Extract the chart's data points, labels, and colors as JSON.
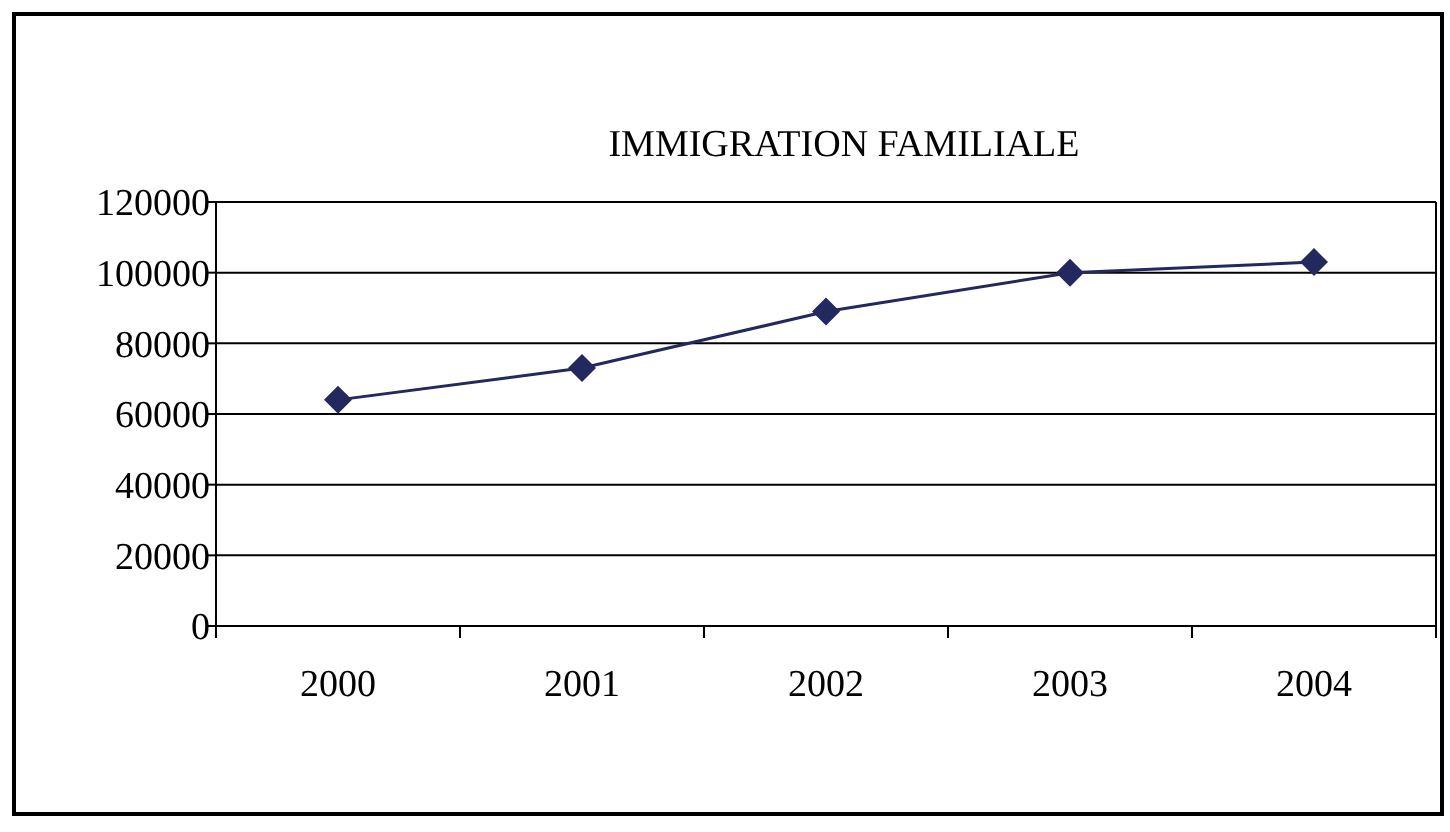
{
  "chart_data": {
    "type": "line",
    "title": "IMMIGRATION FAMILIALE",
    "categories": [
      "2000",
      "2001",
      "2002",
      "2003",
      "2004"
    ],
    "series": [
      {
        "color": "#23285e",
        "values": [
          64000,
          73000,
          89000,
          100000,
          103000
        ]
      }
    ],
    "ylim": [
      0,
      120000
    ],
    "yticks": [
      0,
      20000,
      40000,
      60000,
      80000,
      100000,
      120000
    ],
    "grid": "y",
    "marker": "diamond",
    "line_style": "solid"
  }
}
